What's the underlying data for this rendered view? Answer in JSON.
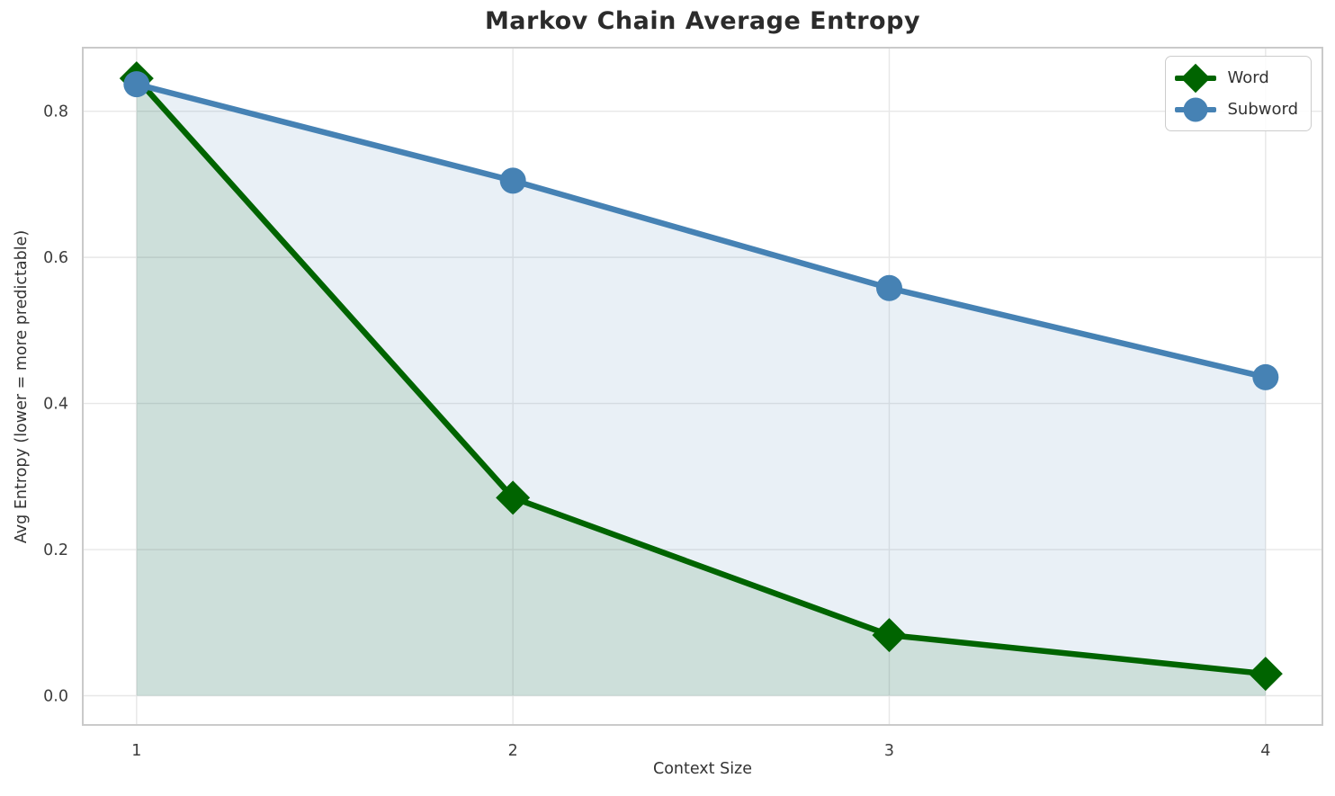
{
  "chart_data": {
    "type": "line",
    "title": "Markov Chain Average Entropy",
    "xlabel": "Context Size",
    "ylabel": "Avg Entropy (lower = more predictable)",
    "x": [
      1,
      2,
      3,
      4
    ],
    "xticks": [
      {
        "value": 1,
        "label": "1"
      },
      {
        "value": 2,
        "label": "2"
      },
      {
        "value": 3,
        "label": "3"
      },
      {
        "value": 4,
        "label": "4"
      }
    ],
    "yticks": [
      {
        "value": 0.0,
        "label": "0.0"
      },
      {
        "value": 0.2,
        "label": "0.2"
      },
      {
        "value": 0.4,
        "label": "0.4"
      },
      {
        "value": 0.6,
        "label": "0.6"
      },
      {
        "value": 0.8,
        "label": "0.8"
      }
    ],
    "xlim": [
      0.857,
      4.151
    ],
    "ylim": [
      -0.04,
      0.887
    ],
    "grid": true,
    "grid_color": "#e7e7e7",
    "spine_color": "#cacaca",
    "legend_position": "upper right",
    "fill_to_zero": true,
    "fill_alpha": 0.12,
    "series": [
      {
        "name": "Word",
        "color": "#006400",
        "marker": "diamond",
        "values": [
          0.845,
          0.271,
          0.083,
          0.03
        ]
      },
      {
        "name": "Subword",
        "color": "#4682b4",
        "marker": "circle",
        "values": [
          0.837,
          0.705,
          0.558,
          0.436
        ]
      }
    ]
  }
}
